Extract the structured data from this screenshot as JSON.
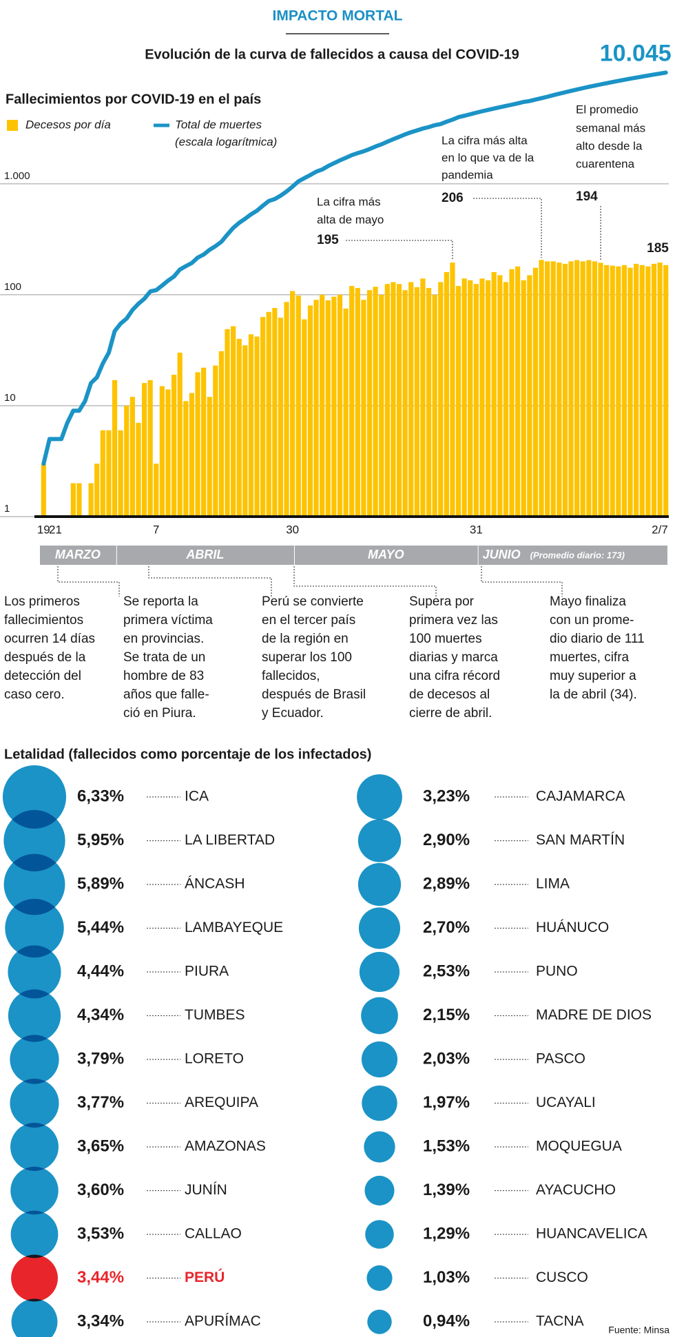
{
  "header": {
    "kicker": "IMPACTO MORTAL",
    "title": "Evolución de la curva de fallecidos a causa del COVID-19"
  },
  "chart_data": [
    {
      "type": "bar",
      "title": "Fallecimientos por COVID-19 en el país",
      "categories": [
        "19",
        null,
        "21",
        null,
        null,
        null,
        null,
        null,
        null,
        null,
        null,
        null,
        null,
        null,
        null,
        null,
        null,
        null,
        null,
        "7",
        null,
        null,
        null,
        null,
        null,
        null,
        null,
        null,
        null,
        null,
        null,
        null,
        null,
        null,
        null,
        null,
        null,
        null,
        null,
        null,
        null,
        null,
        "30",
        null,
        null,
        null,
        null,
        null,
        null,
        null,
        null,
        null,
        null,
        null,
        null,
        null,
        null,
        null,
        null,
        null,
        null,
        null,
        null,
        null,
        null,
        null,
        null,
        null,
        null,
        null,
        null,
        null,
        null,
        "31",
        null,
        null,
        null,
        null,
        null,
        null,
        null,
        null,
        null,
        null,
        null,
        null,
        null,
        null,
        null,
        null,
        null,
        null,
        null,
        null,
        null,
        null,
        null,
        null,
        null,
        null,
        null,
        null,
        null,
        null,
        null,
        "2/7"
      ],
      "series": [
        {
          "name": "Decesos por día",
          "color": "#fdc300",
          "values": [
            3,
            null,
            null,
            null,
            null,
            2,
            2,
            null,
            2,
            3,
            6,
            6,
            17,
            6,
            10,
            12,
            7,
            16,
            17,
            3,
            15,
            14,
            19,
            30,
            11,
            13,
            20,
            22,
            12,
            23,
            31,
            49,
            52,
            40,
            35,
            44,
            42,
            63,
            70,
            76,
            62,
            86,
            108,
            98,
            60,
            80,
            90,
            100,
            89,
            96,
            100,
            75,
            120,
            115,
            90,
            110,
            118,
            100,
            125,
            130,
            125,
            110,
            130,
            117,
            140,
            115,
            100,
            130,
            160,
            195,
            120,
            140,
            135,
            125,
            140,
            135,
            160,
            150,
            130,
            170,
            180,
            135,
            150,
            175,
            206,
            200,
            200,
            195,
            190,
            200,
            205,
            200,
            205,
            200,
            194,
            185,
            183,
            180,
            185,
            175,
            190,
            185,
            180,
            190,
            195,
            185
          ]
        },
        {
          "name": "Total de muertes",
          "note": "(escala logarítmica)",
          "type": "line",
          "color": "#1b93c6",
          "values": [
            3,
            5,
            5,
            5,
            7,
            9,
            9,
            11,
            16,
            18,
            24,
            30,
            47,
            55,
            61,
            73,
            83,
            92,
            107,
            110,
            121,
            134,
            146,
            169,
            181,
            193,
            216,
            230,
            254,
            274,
            300,
            348,
            400,
            445,
            484,
            530,
            572,
            634,
            700,
            728,
            782,
            854,
            943,
            1051,
            1124,
            1200,
            1286,
            1344,
            1444,
            1533,
            1627,
            1714,
            1814,
            1889,
            1961,
            2057,
            2169,
            2267,
            2392,
            2523,
            2648,
            2789,
            2914,
            3024,
            3148,
            3244,
            3373,
            3456,
            3629,
            3788,
            3983,
            4099,
            4230,
            4371,
            4506,
            4634,
            4767,
            4894,
            5031,
            5162,
            5301,
            5465,
            5571,
            5738,
            5903,
            6088,
            6286,
            6484,
            6682,
            6880,
            7078,
            7276,
            7474,
            7672,
            7870,
            8068,
            8266,
            8464,
            8662,
            8860,
            9058,
            9256,
            9454,
            9652,
            9850,
            10045
          ],
          "value_labels": [
            null,
            null,
            null,
            null,
            null,
            null,
            null,
            null,
            null,
            null,
            null,
            null,
            null,
            null,
            null,
            null,
            null,
            null,
            null,
            null,
            null,
            null,
            null,
            null,
            null,
            null,
            null,
            null,
            null,
            null,
            null,
            null,
            null,
            null,
            null,
            null,
            null,
            null,
            null,
            null,
            null,
            null,
            null,
            null,
            null,
            null,
            null,
            null,
            null,
            null,
            null,
            null,
            null,
            null,
            null,
            null,
            null,
            null,
            null,
            null,
            null,
            null,
            null,
            null,
            null,
            null,
            null,
            null,
            null,
            null,
            null,
            null,
            null,
            null,
            null,
            null,
            null,
            null,
            null,
            null,
            null,
            null,
            null,
            null,
            null,
            null,
            null,
            null,
            null,
            null,
            null,
            null,
            null,
            null,
            null,
            null,
            null,
            null,
            null,
            null,
            null,
            null,
            null,
            null,
            null,
            "10.045"
          ]
        }
      ],
      "log_scale": true,
      "ylim": [
        1,
        12000
      ],
      "yticks": [
        1,
        10,
        100,
        {
          "value": 1000,
          "label": "1.000"
        }
      ],
      "grid": true,
      "annotations": [
        {
          "lines": [
            "La cifra más",
            "alta de mayo"
          ],
          "value": 195,
          "index": 69
        },
        {
          "lines": [
            "La cifra más alta",
            "en lo que va de la",
            "pandemia"
          ],
          "value": 206,
          "index": 84
        },
        {
          "lines": [
            "El promedio",
            "semanal más",
            "alto desde la",
            "cuarentena"
          ],
          "value": 194,
          "index": 94
        },
        {
          "value": 185,
          "index": 105
        }
      ]
    },
    {
      "type": "bubble",
      "title": "Letalidad (fallecidos como porcentaje de los infectados)",
      "categories": [
        "ICA",
        "LA LIBERTAD",
        "ÁNCASH",
        "LAMBAYEQUE",
        "PIURA",
        "TUMBES",
        "LORETO",
        "AREQUIPA",
        "AMAZONAS",
        "JUNÍN",
        "CALLAO",
        "PERÚ",
        "APURÍMAC",
        "CAJAMARCA",
        "SAN MARTÍN",
        "LIMA",
        "HUÁNUCO",
        "PUNO",
        "MADRE DE DIOS",
        "PASCO",
        "UCAYALI",
        "MOQUEGUA",
        "AYACUCHO",
        "HUANCAVELICA",
        "CUSCO",
        "TACNA"
      ],
      "values": [
        6.33,
        5.95,
        5.89,
        5.44,
        4.44,
        4.34,
        3.79,
        3.77,
        3.65,
        3.6,
        3.53,
        3.44,
        3.34,
        3.23,
        2.9,
        2.89,
        2.7,
        2.53,
        2.15,
        2.03,
        1.97,
        1.53,
        1.39,
        1.29,
        1.03,
        0.94
      ],
      "value_labels": [
        "6,33%",
        "5,95%",
        "5,89%",
        "5,44%",
        "4,44%",
        "4,34%",
        "3,79%",
        "3,77%",
        "3,65%",
        "3,60%",
        "3,53%",
        "3,44%",
        "3,34%",
        "3,23%",
        "2,90%",
        "2,89%",
        "2,70%",
        "2,53%",
        "2,15%",
        "2,03%",
        "1,97%",
        "1,53%",
        "1,39%",
        "1,29%",
        "1,03%",
        "0,94%"
      ],
      "color": "#1b93c6",
      "highlight_index": 11,
      "highlight_color": "#e8252a"
    }
  ],
  "timeline": {
    "months": [
      "MARZO",
      "ABRIL",
      "MAYO",
      "JUNIO"
    ],
    "average_note": "(Promedio diario: 173)",
    "notes": [
      [
        "Los primeros",
        "fallecimientos",
        "ocurren 14 días",
        "después de la",
        "detección del",
        "caso cero."
      ],
      [
        "Se reporta la",
        "primera víctima",
        "en provincias.",
        "Se trata de un",
        "hombre de 83",
        "años que falle-",
        "ció en Piura."
      ],
      [
        "Perú se convierte",
        "en el tercer país",
        "de la región en",
        "superar los 100",
        "fallecidos,",
        "después de Brasil",
        "y Ecuador."
      ],
      [
        "Supera por",
        "primera vez las",
        "100 muertes",
        "diarias y marca",
        "una cifra récord",
        "de decesos al",
        "cierre de abril."
      ],
      [
        "Mayo finaliza",
        "con un prome-",
        "dio diario de 111",
        "muertes, cifra",
        "muy superior a",
        "la de abril (34)."
      ]
    ]
  },
  "source": "Fuente: Minsa"
}
